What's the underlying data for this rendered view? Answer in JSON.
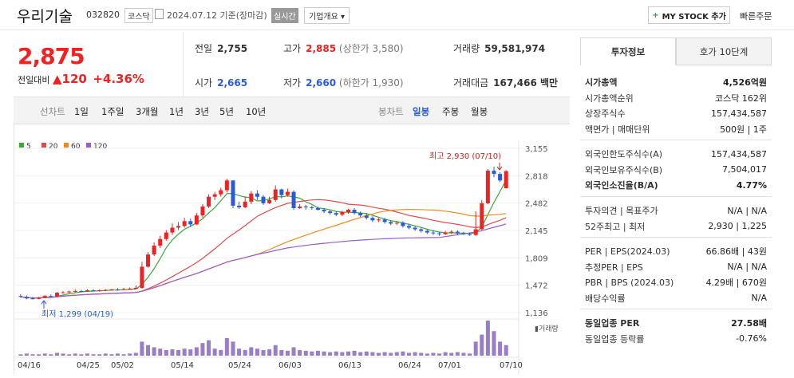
{
  "header": {
    "name": "우리기술",
    "code": "032820",
    "market": "코스닥",
    "date": "2024.07.12",
    "basis": "기준(장마감)",
    "realtime": "실시간",
    "overview": "기업개요",
    "mystock": "MY STOCK 추가",
    "quick": "빠른주문"
  },
  "price": {
    "current": "2,875",
    "change_label": "전일대비",
    "change": "120",
    "rate": "+4.36%"
  },
  "stats": {
    "prev_label": "전일",
    "prev": "2,755",
    "high_label": "고가",
    "high": "2,885",
    "upper": "(상한가 3,580)",
    "volume_label": "거래량",
    "volume": "59,581,974",
    "open_label": "시가",
    "open": "2,665",
    "low_label": "저가",
    "low": "2,660",
    "lower": "(하한가 1,930)",
    "amount_label": "거래대금",
    "amount": "167,466 백만"
  },
  "toolbar": {
    "line_label": "선차트",
    "periods": [
      "1일",
      "1주일",
      "3개월",
      "1년",
      "3년",
      "5년",
      "10년"
    ],
    "candle_label": "봉차트",
    "candle": [
      "일봉",
      "주봉",
      "월봉"
    ]
  },
  "chart_data": {
    "type": "candlestick",
    "legend": [
      "5",
      "20",
      "60",
      "120"
    ],
    "colors": {
      "up": "#e22",
      "down": "#2a5bd7",
      "ma5": "#3aaa35",
      "ma20": "#e24a4a",
      "ma60": "#ef8a1f",
      "ma120": "#9a5bd0",
      "volume": "#9a7dc9"
    },
    "yticks": [
      "3,155",
      "2,818",
      "2,482",
      "2,145",
      "1,809",
      "1,472",
      "1,136"
    ],
    "ylim": [
      1136,
      3155
    ],
    "xticks": [
      "04/16",
      "04/25",
      "05/02",
      "05/14",
      "05/24",
      "06/03",
      "06/13",
      "06/24",
      "07/01",
      "07/10"
    ],
    "high_annot": "최고 2,930 (07/10)",
    "low_annot": "최저 1,299 (04/19)",
    "volume_label": "거래량",
    "candles": [
      [
        1340,
        1330,
        1360,
        1320
      ],
      [
        1330,
        1310,
        1345,
        1300
      ],
      [
        1310,
        1305,
        1330,
        1299
      ],
      [
        1305,
        1320,
        1330,
        1300
      ],
      [
        1320,
        1340,
        1350,
        1315
      ],
      [
        1340,
        1335,
        1360,
        1325
      ],
      [
        1335,
        1380,
        1390,
        1330
      ],
      [
        1380,
        1385,
        1400,
        1370
      ],
      [
        1385,
        1395,
        1405,
        1375
      ],
      [
        1395,
        1400,
        1420,
        1385
      ],
      [
        1400,
        1395,
        1415,
        1385
      ],
      [
        1395,
        1410,
        1425,
        1390
      ],
      [
        1410,
        1405,
        1425,
        1395
      ],
      [
        1405,
        1410,
        1420,
        1395
      ],
      [
        1410,
        1415,
        1425,
        1400
      ],
      [
        1415,
        1420,
        1430,
        1405
      ],
      [
        1420,
        1415,
        1435,
        1405
      ],
      [
        1415,
        1425,
        1440,
        1410
      ],
      [
        1425,
        1430,
        1445,
        1415
      ],
      [
        1430,
        1440,
        1470,
        1420
      ],
      [
        1440,
        1700,
        1760,
        1430
      ],
      [
        1700,
        1850,
        1880,
        1690
      ],
      [
        1850,
        1960,
        2000,
        1830
      ],
      [
        1960,
        2040,
        2080,
        1930
      ],
      [
        2040,
        2120,
        2150,
        2020
      ],
      [
        2120,
        2180,
        2230,
        2090
      ],
      [
        2180,
        2200,
        2250,
        2150
      ],
      [
        2200,
        2260,
        2300,
        2180
      ],
      [
        2260,
        2220,
        2290,
        2190
      ],
      [
        2220,
        2330,
        2360,
        2210
      ],
      [
        2330,
        2440,
        2470,
        2300
      ],
      [
        2440,
        2560,
        2590,
        2420
      ],
      [
        2560,
        2590,
        2620,
        2520
      ],
      [
        2590,
        2640,
        2670,
        2560
      ],
      [
        2640,
        2760,
        2780,
        2610
      ],
      [
        2760,
        2450,
        2760,
        2420
      ],
      [
        2450,
        2430,
        2500,
        2410
      ],
      [
        2430,
        2500,
        2560,
        2420
      ],
      [
        2500,
        2600,
        2630,
        2470
      ],
      [
        2600,
        2560,
        2640,
        2520
      ],
      [
        2560,
        2480,
        2580,
        2460
      ],
      [
        2480,
        2520,
        2560,
        2470
      ],
      [
        2520,
        2650,
        2700,
        2500
      ],
      [
        2650,
        2580,
        2660,
        2540
      ],
      [
        2580,
        2620,
        2660,
        2560
      ],
      [
        2620,
        2420,
        2640,
        2400
      ],
      [
        2420,
        2440,
        2470,
        2410
      ],
      [
        2440,
        2430,
        2460,
        2400
      ],
      [
        2430,
        2420,
        2450,
        2400
      ],
      [
        2420,
        2400,
        2440,
        2390
      ],
      [
        2400,
        2380,
        2420,
        2360
      ],
      [
        2380,
        2360,
        2400,
        2340
      ],
      [
        2360,
        2340,
        2380,
        2320
      ],
      [
        2340,
        2370,
        2390,
        2320
      ],
      [
        2370,
        2400,
        2410,
        2350
      ],
      [
        2400,
        2360,
        2420,
        2340
      ],
      [
        2360,
        2330,
        2380,
        2310
      ],
      [
        2330,
        2300,
        2360,
        2280
      ],
      [
        2300,
        2270,
        2320,
        2250
      ],
      [
        2270,
        2280,
        2300,
        2250
      ],
      [
        2280,
        2250,
        2300,
        2230
      ],
      [
        2250,
        2230,
        2270,
        2210
      ],
      [
        2230,
        2240,
        2260,
        2210
      ],
      [
        2240,
        2200,
        2260,
        2180
      ],
      [
        2200,
        2180,
        2230,
        2160
      ],
      [
        2180,
        2160,
        2200,
        2140
      ],
      [
        2160,
        2140,
        2180,
        2120
      ],
      [
        2140,
        2120,
        2160,
        2100
      ],
      [
        2120,
        2110,
        2150,
        2090
      ],
      [
        2110,
        2100,
        2130,
        2080
      ],
      [
        2100,
        2120,
        2140,
        2090
      ],
      [
        2120,
        2130,
        2150,
        2100
      ],
      [
        2130,
        2110,
        2150,
        2090
      ],
      [
        2110,
        2100,
        2130,
        2090
      ],
      [
        2100,
        2090,
        2120,
        2080
      ],
      [
        2090,
        2160,
        2380,
        2080
      ],
      [
        2160,
        2480,
        2520,
        2150
      ],
      [
        2480,
        2880,
        2900,
        2470
      ],
      [
        2880,
        2840,
        2930,
        2800
      ],
      [
        2840,
        2760,
        2860,
        2740
      ],
      [
        2665,
        2875,
        2885,
        2660
      ]
    ],
    "volumes": [
      2,
      3,
      2,
      2,
      3,
      2,
      4,
      3,
      2,
      3,
      2,
      3,
      2,
      2,
      3,
      2,
      3,
      2,
      3,
      4,
      20,
      15,
      12,
      10,
      8,
      9,
      8,
      10,
      9,
      12,
      18,
      22,
      10,
      8,
      25,
      20,
      10,
      8,
      12,
      10,
      8,
      9,
      15,
      8,
      7,
      12,
      8,
      7,
      6,
      7,
      6,
      5,
      6,
      5,
      6,
      7,
      5,
      6,
      5,
      4,
      5,
      4,
      5,
      6,
      4,
      5,
      4,
      3,
      4,
      3,
      5,
      4,
      5,
      4,
      3,
      20,
      30,
      50,
      35,
      20,
      15
    ]
  },
  "info": {
    "tabs": [
      "투자정보",
      "호가 10단계"
    ],
    "rows1": [
      {
        "k": "시가총액",
        "v": "4,526억원",
        "bold": true
      },
      {
        "k": "시가총액순위",
        "v": "코스닥 162위"
      },
      {
        "k": "상장주식수",
        "v": "157,434,587"
      },
      {
        "k": "액면가 | 매매단위",
        "v": "500원 | 1주"
      }
    ],
    "rows2": [
      {
        "k": "외국인한도주식수(A)",
        "v": "157,434,587"
      },
      {
        "k": "외국인보유주식수(B)",
        "v": "7,504,017"
      },
      {
        "k": "외국인소진율(B/A)",
        "v": "4.77%",
        "bold": true
      }
    ],
    "rows3": [
      {
        "k": "투자의견 | 목표주가",
        "v": "N/A | N/A"
      },
      {
        "k": "52주최고 | 최저",
        "v": "2,930 | 1,225"
      }
    ],
    "rows4": [
      {
        "k": "PER | EPS(2024.03)",
        "v": "66.86배 | 43원"
      },
      {
        "k": "추정PER | EPS",
        "v": "N/A | N/A"
      },
      {
        "k": "PBR | BPS (2024.03)",
        "v": "4.29배 | 670원"
      },
      {
        "k": "배당수익률",
        "v": "N/A"
      }
    ],
    "rows5": [
      {
        "k": "동일업종 PER",
        "v": "27.58배",
        "bold": true
      },
      {
        "k": "동일업종 등락률",
        "v": "-0.76%",
        "blue": true
      }
    ]
  }
}
